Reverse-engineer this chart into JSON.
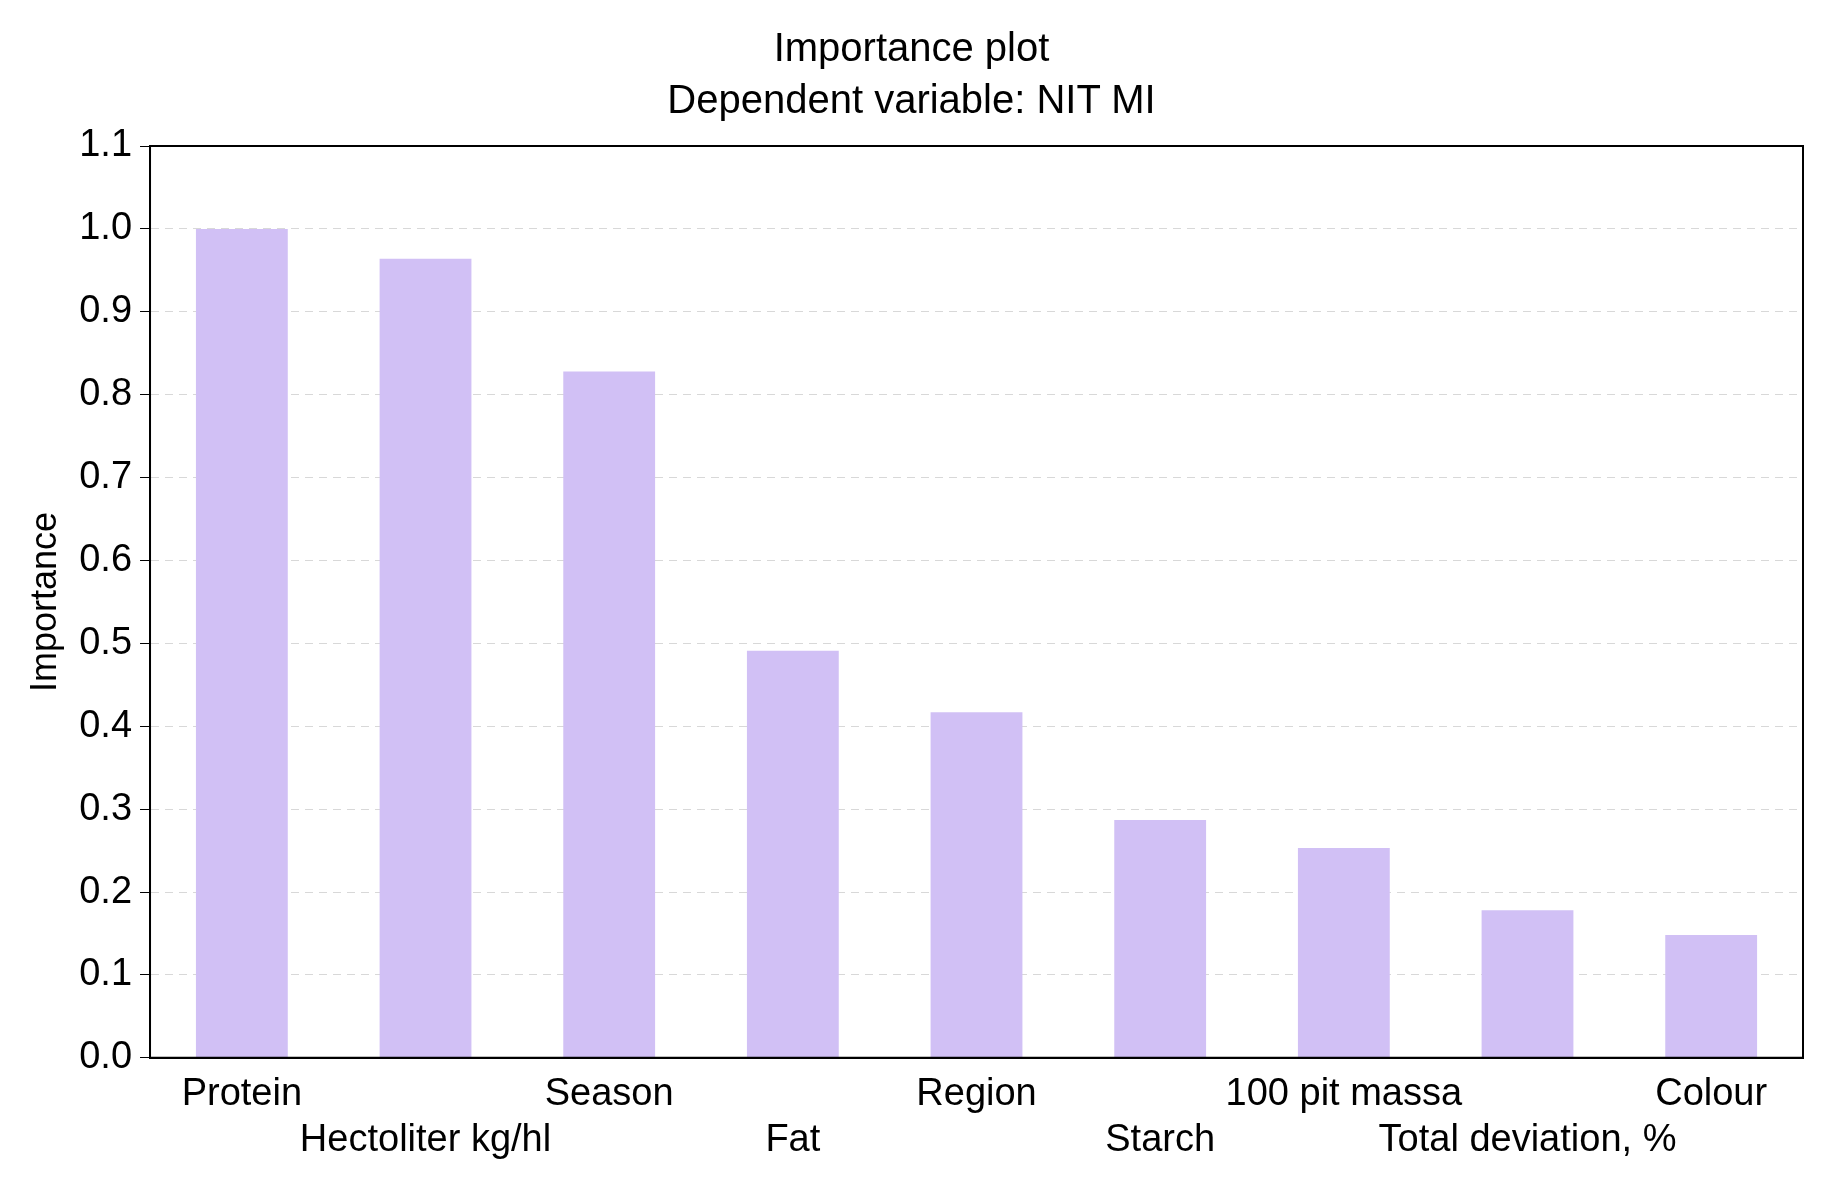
{
  "chart_data": {
    "type": "bar",
    "title": "Importance plot",
    "subtitle": "Dependent variable: NIT MI",
    "ylabel": "Importance",
    "categories": [
      "Protein",
      "Hectoliter kg/hl",
      "Season",
      "Fat",
      "Region",
      "Starch",
      "100 pit massa",
      "Total deviation, %",
      "Colour"
    ],
    "values": [
      1.0,
      0.964,
      0.828,
      0.491,
      0.417,
      0.287,
      0.253,
      0.178,
      0.148
    ],
    "color": "#d1c0f5",
    "ylim": [
      0,
      1.1
    ],
    "yticks": [
      {
        "value": 0,
        "label": "0.0"
      },
      {
        "value": 0.1,
        "label": "0.1"
      },
      {
        "value": 0.2,
        "label": "0.2"
      },
      {
        "value": 0.3,
        "label": "0.3"
      },
      {
        "value": 0.4,
        "label": "0.4"
      },
      {
        "value": 0.5,
        "label": "0.5"
      },
      {
        "value": 0.6,
        "label": "0.6"
      },
      {
        "value": 0.7,
        "label": "0.7"
      },
      {
        "value": 0.8,
        "label": "0.8"
      },
      {
        "value": 0.9,
        "label": "0.9"
      },
      {
        "value": 1.0,
        "label": "1.0"
      },
      {
        "value": 1.1,
        "label": "1.1"
      }
    ],
    "grid": "y"
  }
}
